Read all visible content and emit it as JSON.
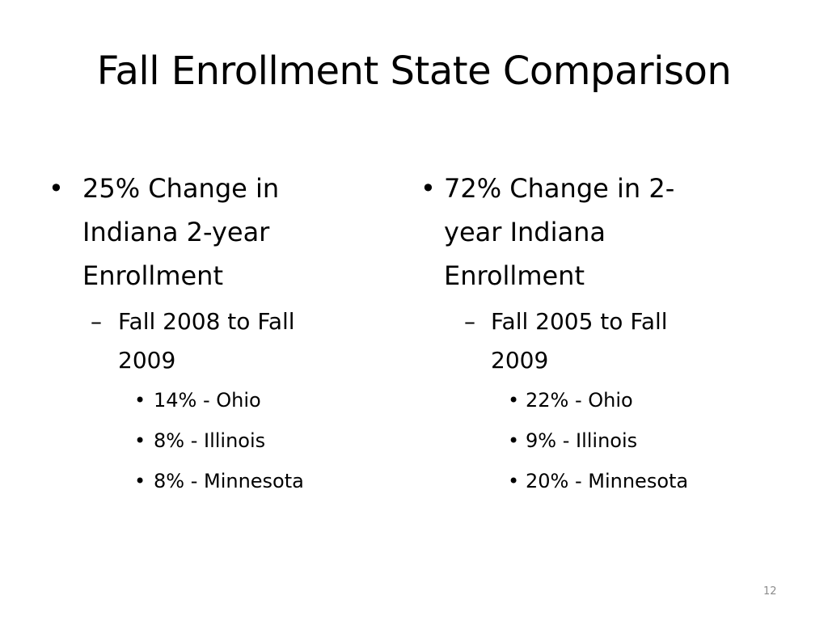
{
  "title": "Fall Enrollment State Comparison",
  "left": {
    "heading": "25% Change in Indiana 2-year Enrollment",
    "heading_lines": [
      "25% Change in",
      "Indiana 2-year",
      "Enrollment"
    ],
    "sub_lines": [
      "Fall 2008 to Fall",
      "2009"
    ],
    "items": [
      "14% - Ohio",
      "8% - Illinois",
      "8% - Minnesota"
    ]
  },
  "right": {
    "heading_lines": [
      "72% Change in 2-",
      "year Indiana",
      "Enrollment"
    ],
    "sub_lines": [
      "Fall 2005 to Fall",
      "2009"
    ],
    "items": [
      "22% - Ohio",
      "9% - Illinois",
      "20% - Minnesota"
    ]
  },
  "page_number": "12"
}
